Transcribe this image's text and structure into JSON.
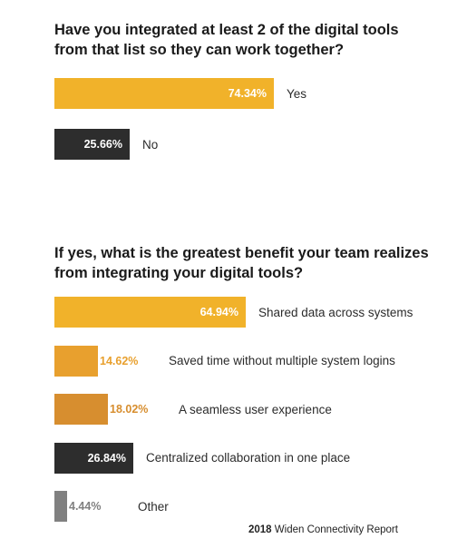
{
  "chart_data": [
    {
      "type": "bar",
      "orientation": "horizontal",
      "title": "Have you integrated at least 2 of the digital tools from that list so they can work together?",
      "unit": "%",
      "categories": [
        "Yes",
        "No"
      ],
      "values": [
        74.34,
        25.66
      ],
      "value_labels": [
        "74.34%",
        "25.66%"
      ],
      "colors": [
        "#f1b22a",
        "#2d2d2d"
      ],
      "value_label_colors": [
        "#ffffff",
        "#ffffff"
      ],
      "xlim": [
        0,
        100
      ],
      "grid": false,
      "legend": "none"
    },
    {
      "type": "bar",
      "orientation": "horizontal",
      "title": "If yes, what is the greatest benefit your team realizes from integrating your digital tools?",
      "unit": "%",
      "categories": [
        "Shared data across systems",
        "Saved time without multiple system logins",
        "A seamless user experience",
        "Centralized collaboration in one place",
        "Other"
      ],
      "values": [
        64.94,
        14.62,
        18.02,
        26.84,
        4.44
      ],
      "value_labels": [
        "64.94%",
        "14.62%",
        "18.02%",
        "26.84%",
        "4.44%"
      ],
      "colors": [
        "#f1b22a",
        "#e8a02e",
        "#d78e2f",
        "#2d2d2d",
        "#808080"
      ],
      "value_label_colors": [
        "#ffffff",
        "#e8a02e",
        "#d78e2f",
        "#ffffff",
        "#808080"
      ],
      "xlim": [
        0,
        100
      ],
      "grid": false,
      "legend": "none"
    }
  ],
  "footer": {
    "year": "2018",
    "text": "Widen Connectivity Report"
  }
}
